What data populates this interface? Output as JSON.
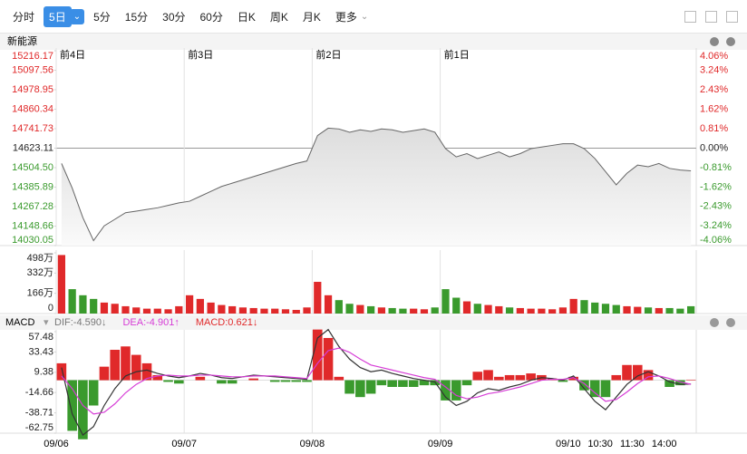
{
  "toolbar": {
    "buttons": [
      "分时",
      "5日",
      "5分",
      "15分",
      "30分",
      "60分",
      "日K",
      "周K",
      "月K",
      "更多"
    ],
    "selected": 1
  },
  "panel_title": "新能源",
  "chart_data": [
    {
      "type": "line",
      "area": true,
      "xlim": [
        0,
        60
      ],
      "xticks": [
        {
          "value": 0,
          "label": "前4日"
        },
        {
          "value": 12,
          "label": "前3日"
        },
        {
          "value": 24,
          "label": "前2日"
        },
        {
          "value": 36,
          "label": "前1日"
        }
      ],
      "ylim": [
        14030.05,
        15216.17
      ],
      "yticks": [
        {
          "value": 15216.17,
          "label": "15216.17"
        },
        15097.56,
        14978.95,
        14860.34,
        14741.73,
        14623.11,
        {
          "value": 14504.5,
          "label": "14504.50"
        },
        14385.89,
        14267.28,
        14148.66,
        14030.05
      ],
      "y2lim": [
        -4.06,
        4.06
      ],
      "y2ticks": [
        {
          "value": 4.06,
          "label": "4.06%"
        },
        {
          "value": 3.24,
          "label": "3.24%"
        },
        {
          "value": 2.43,
          "label": "2.43%"
        },
        {
          "value": 1.62,
          "label": "1.62%"
        },
        {
          "value": 0.81,
          "label": "0.81%"
        },
        {
          "value": 0,
          "label": "0.00%"
        },
        {
          "value": -0.81,
          "label": "-0.81%"
        },
        {
          "value": -1.62,
          "label": "-1.62%"
        },
        {
          "value": -2.43,
          "label": "-2.43%"
        },
        {
          "value": -3.24,
          "label": "-3.24%"
        },
        {
          "value": -4.06,
          "label": "-4.06%"
        }
      ],
      "up_color": "#e0292a",
      "down_color": "#3a9a2d",
      "flat_color": "#222",
      "series": [
        {
          "color": "#666",
          "values": [
            14530,
            14380,
            14200,
            14060,
            14150,
            14190,
            14230,
            14240,
            14250,
            14260,
            14275,
            14290,
            14300,
            14330,
            14360,
            14390,
            14410,
            14430,
            14450,
            14470,
            14490,
            14510,
            14530,
            14545,
            14700,
            14745,
            14740,
            14720,
            14735,
            14725,
            14740,
            14735,
            14720,
            14730,
            14740,
            14720,
            14620,
            14570,
            14590,
            14560,
            14580,
            14600,
            14570,
            14590,
            14620,
            14630,
            14640,
            14650,
            14650,
            14620,
            14560,
            14480,
            14400,
            14470,
            14520,
            14510,
            14530,
            14500,
            14490,
            14485
          ]
        }
      ]
    },
    {
      "type": "bar",
      "xlim": [
        0,
        60
      ],
      "ylim": [
        0,
        498
      ],
      "yticks": [
        {
          "value": 498,
          "label": "498万"
        },
        {
          "value": 332,
          "label": "332万"
        },
        {
          "value": 166,
          "label": "166万"
        },
        0
      ],
      "up_color": "#e0292a",
      "down_color": "#3a9a2d",
      "values": [
        480,
        200,
        150,
        120,
        90,
        80,
        60,
        50,
        40,
        40,
        35,
        60,
        150,
        120,
        90,
        70,
        60,
        50,
        45,
        40,
        40,
        35,
        30,
        50,
        260,
        150,
        110,
        80,
        70,
        60,
        50,
        45,
        40,
        40,
        35,
        50,
        200,
        130,
        100,
        80,
        70,
        60,
        50,
        45,
        40,
        40,
        35,
        50,
        120,
        110,
        90,
        80,
        70,
        60,
        55,
        50,
        45,
        45,
        40,
        60
      ]
    },
    {
      "type": "macd",
      "title": "MACD",
      "xlim": [
        0,
        60
      ],
      "ylim": [
        -62.75,
        57.48
      ],
      "yticks": [
        57.48,
        33.43,
        9.38,
        -14.66,
        -38.71,
        -62.75
      ],
      "xticks": [
        {
          "value": 0,
          "label": "09/06"
        },
        {
          "value": 12,
          "label": "09/07"
        },
        {
          "value": 24,
          "label": "09/08"
        },
        {
          "value": 36,
          "label": "09/09"
        },
        {
          "value": 48,
          "label": "09/10"
        },
        {
          "value": 51,
          "label": "10:30"
        },
        {
          "value": 54,
          "label": "11:30"
        },
        {
          "value": 57,
          "label": "14:00"
        }
      ],
      "up_color": "#e0292a",
      "down_color": "#3a9a2d",
      "series": [
        {
          "name": "DIF:-4.590↓",
          "color": "#333",
          "kind": "line",
          "values": [
            15,
            -40,
            -65,
            -55,
            -30,
            -10,
            5,
            10,
            12,
            8,
            5,
            3,
            5,
            8,
            6,
            3,
            2,
            4,
            6,
            5,
            4,
            3,
            2,
            1,
            50,
            60,
            40,
            25,
            15,
            10,
            12,
            8,
            5,
            2,
            0,
            -2,
            -20,
            -30,
            -25,
            -15,
            -10,
            -12,
            -8,
            -5,
            0,
            3,
            2,
            0,
            5,
            -10,
            -25,
            -35,
            -20,
            -5,
            5,
            10,
            5,
            -2,
            -5,
            -4.59
          ]
        },
        {
          "name": "DEA:-4.901↑",
          "color": "#d63cd6",
          "kind": "line",
          "values": [
            5,
            -10,
            -30,
            -40,
            -38,
            -28,
            -15,
            -5,
            2,
            5,
            6,
            5,
            5,
            6,
            6,
            5,
            4,
            4,
            5,
            5,
            5,
            4,
            3,
            2,
            20,
            35,
            38,
            33,
            25,
            18,
            15,
            12,
            9,
            6,
            3,
            1,
            -8,
            -18,
            -22,
            -20,
            -16,
            -14,
            -11,
            -8,
            -4,
            0,
            1,
            1,
            3,
            -4,
            -15,
            -25,
            -23,
            -14,
            -4,
            4,
            5,
            2,
            -2,
            -4.901
          ]
        },
        {
          "name": "MACD:0.621↓",
          "color": "#e0292a",
          "kind": "bar",
          "values": [
            20,
            -60,
            -70,
            -30,
            16,
            36,
            40,
            30,
            20,
            6,
            -2,
            -4,
            0,
            4,
            0,
            -4,
            -4,
            0,
            2,
            0,
            -2,
            -2,
            -2,
            -2,
            60,
            50,
            4,
            -16,
            -20,
            -16,
            -6,
            -8,
            -8,
            -8,
            -6,
            -6,
            -24,
            -24,
            -6,
            10,
            12,
            4,
            6,
            6,
            8,
            6,
            2,
            -2,
            4,
            -12,
            -20,
            -20,
            6,
            18,
            18,
            12,
            0,
            -8,
            -6,
            0.621
          ]
        }
      ]
    }
  ]
}
